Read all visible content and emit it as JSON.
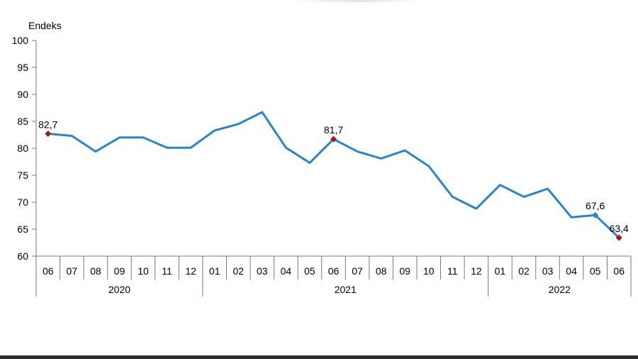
{
  "chart_data": {
    "type": "line",
    "ylabel": "Endeks",
    "ylim": [
      60,
      100
    ],
    "yticks": [
      60,
      65,
      70,
      75,
      80,
      85,
      90,
      95,
      100
    ],
    "yticklabels": [
      "60",
      "65",
      "70",
      "75",
      "80",
      "85",
      "90",
      "95",
      "100"
    ],
    "categories": [
      "06",
      "07",
      "08",
      "09",
      "10",
      "11",
      "12",
      "01",
      "02",
      "03",
      "04",
      "05",
      "06",
      "07",
      "08",
      "09",
      "10",
      "11",
      "12",
      "01",
      "02",
      "03",
      "04",
      "05",
      "06"
    ],
    "years": [
      {
        "label": "2020",
        "span": 7
      },
      {
        "label": "2021",
        "span": 12
      },
      {
        "label": "2022",
        "span": 6
      }
    ],
    "series": [
      {
        "values": [
          82.7,
          82.3,
          79.4,
          82.0,
          82.0,
          80.1,
          80.1,
          83.3,
          84.5,
          86.7,
          80.1,
          77.3,
          81.7,
          79.4,
          78.1,
          79.6,
          76.7,
          71.0,
          68.8,
          73.2,
          71.0,
          72.5,
          67.2,
          67.6,
          63.4
        ],
        "color": "#2e83c5"
      }
    ],
    "data_labels": [
      {
        "index": 0,
        "text": "82,7",
        "marker_color": "#a11a1a"
      },
      {
        "index": 12,
        "text": "81,7",
        "marker_color": "#a11a1a"
      },
      {
        "index": 23,
        "text": "67,6",
        "marker_color": "#2e83c5"
      },
      {
        "index": 24,
        "text": "63,4",
        "marker_color": "#a11a1a"
      }
    ],
    "grid": false,
    "legend": "none"
  }
}
